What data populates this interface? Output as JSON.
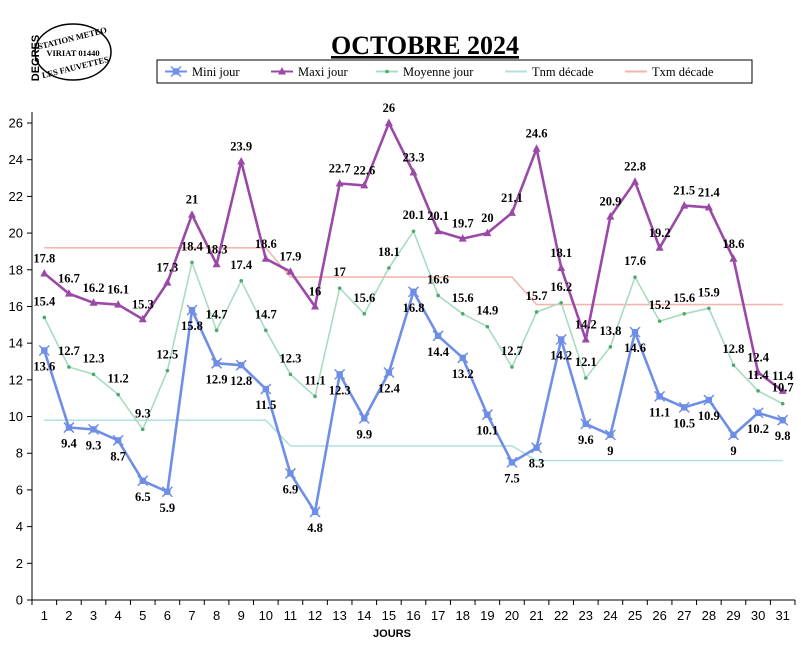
{
  "stamp": {
    "line1": "STATION METEO",
    "line2": "VIRIAT 01440",
    "line3": "LES FAUVETTES"
  },
  "chart_data": {
    "type": "line",
    "title": "OCTOBRE 2024",
    "xlabel": "JOURS",
    "ylabel": "DEGRES",
    "ylim": [
      0,
      26
    ],
    "yticks": [
      0,
      2,
      4,
      6,
      8,
      10,
      12,
      14,
      16,
      18,
      20,
      22,
      24,
      26
    ],
    "categories": [
      "1",
      "2",
      "3",
      "4",
      "5",
      "6",
      "7",
      "8",
      "9",
      "10",
      "11",
      "12",
      "13",
      "14",
      "15",
      "16",
      "17",
      "18",
      "19",
      "20",
      "21",
      "22",
      "23",
      "24",
      "25",
      "26",
      "27",
      "28",
      "29",
      "30",
      "31"
    ],
    "grid": false,
    "legend_position": "top",
    "series": [
      {
        "name": "Mini jour",
        "color": "#6f8fe6",
        "marker": "star",
        "labels": true,
        "values": [
          13.6,
          9.4,
          9.3,
          8.7,
          6.5,
          5.9,
          15.8,
          12.9,
          12.8,
          11.5,
          6.9,
          4.8,
          12.3,
          9.9,
          12.4,
          16.8,
          14.4,
          13.2,
          10.1,
          7.5,
          8.3,
          14.2,
          9.6,
          9,
          14.6,
          11.1,
          10.5,
          10.9,
          9,
          10.2,
          9.8
        ]
      },
      {
        "name": "Maxi jour",
        "color": "#9a4aa6",
        "marker": "triangle",
        "labels": true,
        "values": [
          17.8,
          16.7,
          16.2,
          16.1,
          15.3,
          17.3,
          21,
          18.3,
          23.9,
          18.6,
          17.9,
          16,
          22.7,
          22.6,
          26,
          23.3,
          20.1,
          19.7,
          20,
          21.1,
          24.6,
          18.1,
          14.2,
          20.9,
          22.8,
          19.2,
          21.5,
          21.4,
          18.6,
          12.4,
          11.4
        ]
      },
      {
        "name": "Moyenne jour",
        "color": "#a9dcbf",
        "marker": "dot",
        "labels": true,
        "values": [
          15.4,
          12.7,
          12.3,
          11.2,
          9.3,
          12.5,
          18.4,
          14.7,
          17.4,
          14.7,
          12.3,
          11.1,
          17,
          15.6,
          18.1,
          20.1,
          16.6,
          15.6,
          14.9,
          12.7,
          15.7,
          16.2,
          12.1,
          13.8,
          17.6,
          15.2,
          15.6,
          15.9,
          12.8,
          11.4,
          10.7
        ]
      },
      {
        "name": "Tnm décade",
        "color": "#b6e0df",
        "marker": "none",
        "labels": false,
        "values": [
          9.8,
          9.8,
          9.8,
          9.8,
          9.8,
          9.8,
          9.8,
          9.8,
          9.8,
          9.8,
          8.4,
          8.4,
          8.4,
          8.4,
          8.4,
          8.4,
          8.4,
          8.4,
          8.4,
          8.4,
          7.6,
          7.6,
          7.6,
          7.6,
          7.6,
          7.6,
          7.6,
          7.6,
          7.6,
          7.6,
          7.6
        ]
      },
      {
        "name": "Txm décade",
        "color": "#f3b6ae",
        "marker": "none",
        "labels": false,
        "values": [
          19.2,
          19.2,
          19.2,
          19.2,
          19.2,
          19.2,
          19.2,
          19.2,
          19.2,
          19.2,
          17.6,
          17.6,
          17.6,
          17.6,
          17.6,
          17.6,
          17.6,
          17.6,
          17.6,
          17.6,
          16.1,
          16.1,
          16.1,
          16.1,
          16.1,
          16.1,
          16.1,
          16.1,
          16.1,
          16.1,
          16.1
        ]
      }
    ]
  }
}
